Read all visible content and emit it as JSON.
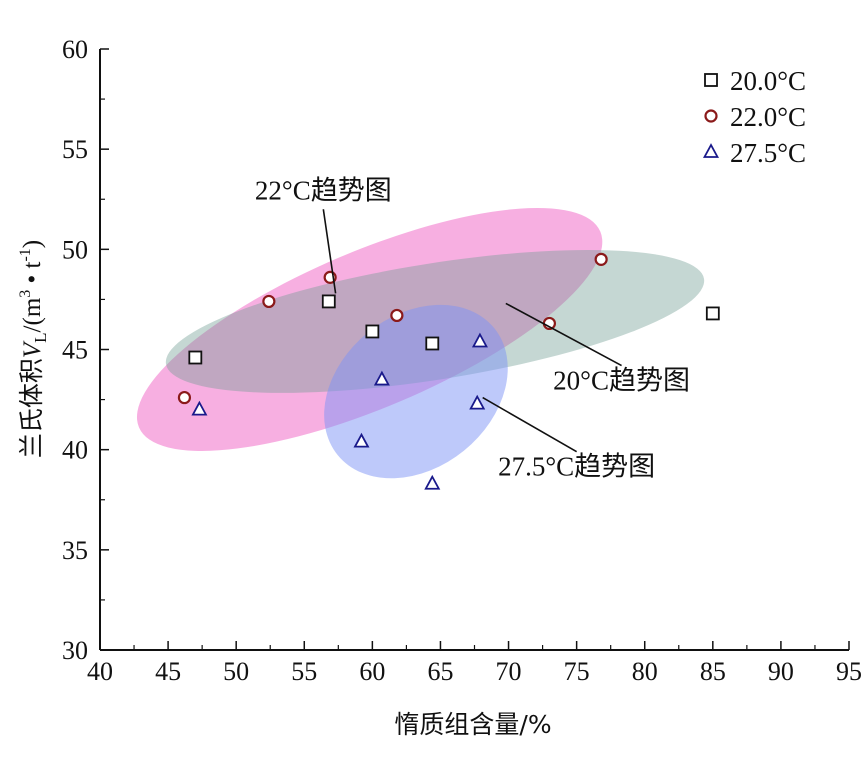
{
  "chart_data": {
    "type": "scatter",
    "xlabel": "惰质组含量/%",
    "ylabel_prefix": "兰氏体积",
    "ylabel_var": "V",
    "ylabel_sub": "L",
    "ylabel_unit": "/(m",
    "ylabel_unit_sup": "3",
    "ylabel_unit_mid": " • t",
    "ylabel_unit_sup2": "-1",
    "ylabel_unit_end": ")",
    "xlim": [
      40,
      95
    ],
    "ylim": [
      30,
      60
    ],
    "xticks": [
      40,
      45,
      50,
      55,
      60,
      65,
      70,
      75,
      80,
      85,
      90,
      95
    ],
    "yticks": [
      30,
      35,
      40,
      45,
      50,
      55,
      60
    ],
    "series": [
      {
        "name": "20.0°C",
        "marker": "square",
        "color": "#111111",
        "points": [
          [
            47.0,
            44.6
          ],
          [
            56.8,
            47.4
          ],
          [
            60.0,
            45.9
          ],
          [
            64.4,
            45.3
          ],
          [
            85.0,
            46.8
          ]
        ]
      },
      {
        "name": "22.0°C",
        "marker": "circle",
        "color": "#8b1a1a",
        "points": [
          [
            46.2,
            42.6
          ],
          [
            52.4,
            47.4
          ],
          [
            56.9,
            48.6
          ],
          [
            61.8,
            46.7
          ],
          [
            73.0,
            46.3
          ],
          [
            76.8,
            49.5
          ]
        ]
      },
      {
        "name": "27.5°C",
        "marker": "triangle",
        "color": "#1a1a8b",
        "points": [
          [
            47.3,
            42.0
          ],
          [
            59.2,
            40.4
          ],
          [
            60.7,
            43.5
          ],
          [
            64.4,
            38.3
          ],
          [
            67.7,
            42.3
          ],
          [
            67.9,
            45.4
          ]
        ]
      }
    ],
    "trend_regions": [
      {
        "label": "22°C趋势图",
        "color": "#f06ec8",
        "opacity": 0.55,
        "center": [
          59.8,
          46.0
        ],
        "rx_units": 18.4,
        "ry_units": 3.9,
        "angle_deg": -23
      },
      {
        "label": "20°C趋势图",
        "color": "#6f9a92",
        "opacity": 0.4,
        "center": [
          64.6,
          46.4
        ],
        "rx_units": 20.0,
        "ry_units": 2.9,
        "angle_deg": -9
      },
      {
        "label": "27.5°C趋势图",
        "color": "#7d94f6",
        "opacity": 0.5,
        "center": [
          63.2,
          42.9
        ],
        "rx_units": 7.4,
        "ry_units": 3.8,
        "angle_deg": -39
      }
    ],
    "annotations": [
      {
        "text": "22°C趋势图",
        "anchor": [
          57.3,
          47.8
        ],
        "text_pos": [
          56.4,
          52.5
        ]
      },
      {
        "text": "20°C趋势图",
        "anchor": [
          69.8,
          47.3
        ],
        "text_pos": [
          78.3,
          43.0
        ]
      },
      {
        "text": "27.5°C趋势图",
        "anchor": [
          68.1,
          42.6
        ],
        "text_pos": [
          75.0,
          38.7
        ]
      }
    ],
    "legend_position": "top-right",
    "grid": false
  }
}
